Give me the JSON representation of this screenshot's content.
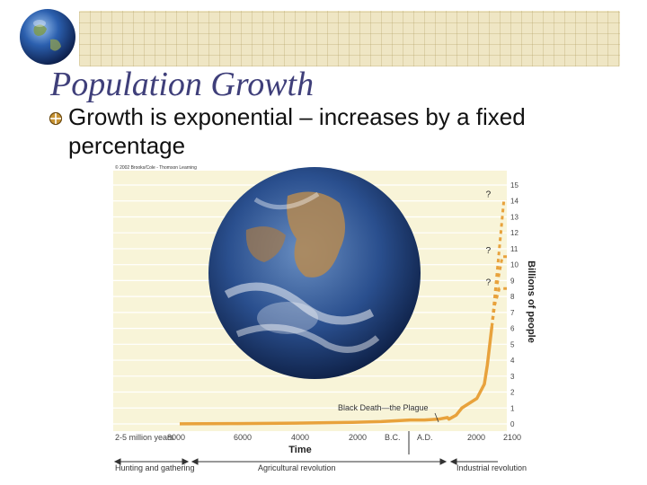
{
  "slide": {
    "title": "Population Growth",
    "bullet": "Growth is exponential – increases by a fixed percentage"
  },
  "colors": {
    "title": "#3f3f7a",
    "plot_background": "#f8f4d8",
    "curve": "#e8a23c",
    "banner": "#efe6c4"
  },
  "icons": {
    "logo": "globe-icon",
    "bullet": "crosshair-bullet-icon",
    "photo": "earth-photo"
  },
  "chart_data": {
    "type": "line",
    "copyright": "© 2002 Brooks/Cole - Thomson Learning",
    "xlabel": "Time",
    "ylabel": "Billions of people",
    "ylim": [
      0,
      15
    ],
    "yticks": [
      0,
      1,
      2,
      3,
      4,
      5,
      6,
      7,
      8,
      9,
      10,
      11,
      12,
      13,
      14,
      15
    ],
    "x_tick_labels": [
      "2-5 million years",
      "8000",
      "6000",
      "4000",
      "2000",
      "B.C.",
      "A.D.",
      "2000",
      "2100"
    ],
    "series": [
      {
        "x": [
          -8000,
          -6000,
          -4000,
          -2000,
          -1000,
          0,
          500,
          1000,
          1300,
          1350,
          1400,
          1600,
          1800,
          1900,
          1950,
          1970,
          1990,
          2000
        ],
        "y": [
          0.005,
          0.02,
          0.05,
          0.1,
          0.15,
          0.25,
          0.25,
          0.3,
          0.4,
          0.3,
          0.35,
          0.55,
          1.0,
          1.6,
          2.5,
          3.7,
          5.3,
          6.1
        ]
      }
    ],
    "projections": [
      {
        "label": "?",
        "x": [
          2000,
          2020,
          2050,
          2100
        ],
        "y": [
          6.1,
          7.5,
          8.5,
          8.5
        ]
      },
      {
        "label": "?",
        "x": [
          2000,
          2030,
          2070,
          2100
        ],
        "y": [
          6.1,
          8.5,
          10.5,
          10.5
        ]
      },
      {
        "label": "?",
        "x": [
          2000,
          2040,
          2080,
          2100
        ],
        "y": [
          6.1,
          10.0,
          14.0,
          14.0
        ]
      }
    ],
    "annotations": [
      "Black Death—the Plague"
    ],
    "periods": [
      "Hunting and gathering",
      "Agricultural revolution",
      "Industrial revolution"
    ]
  }
}
